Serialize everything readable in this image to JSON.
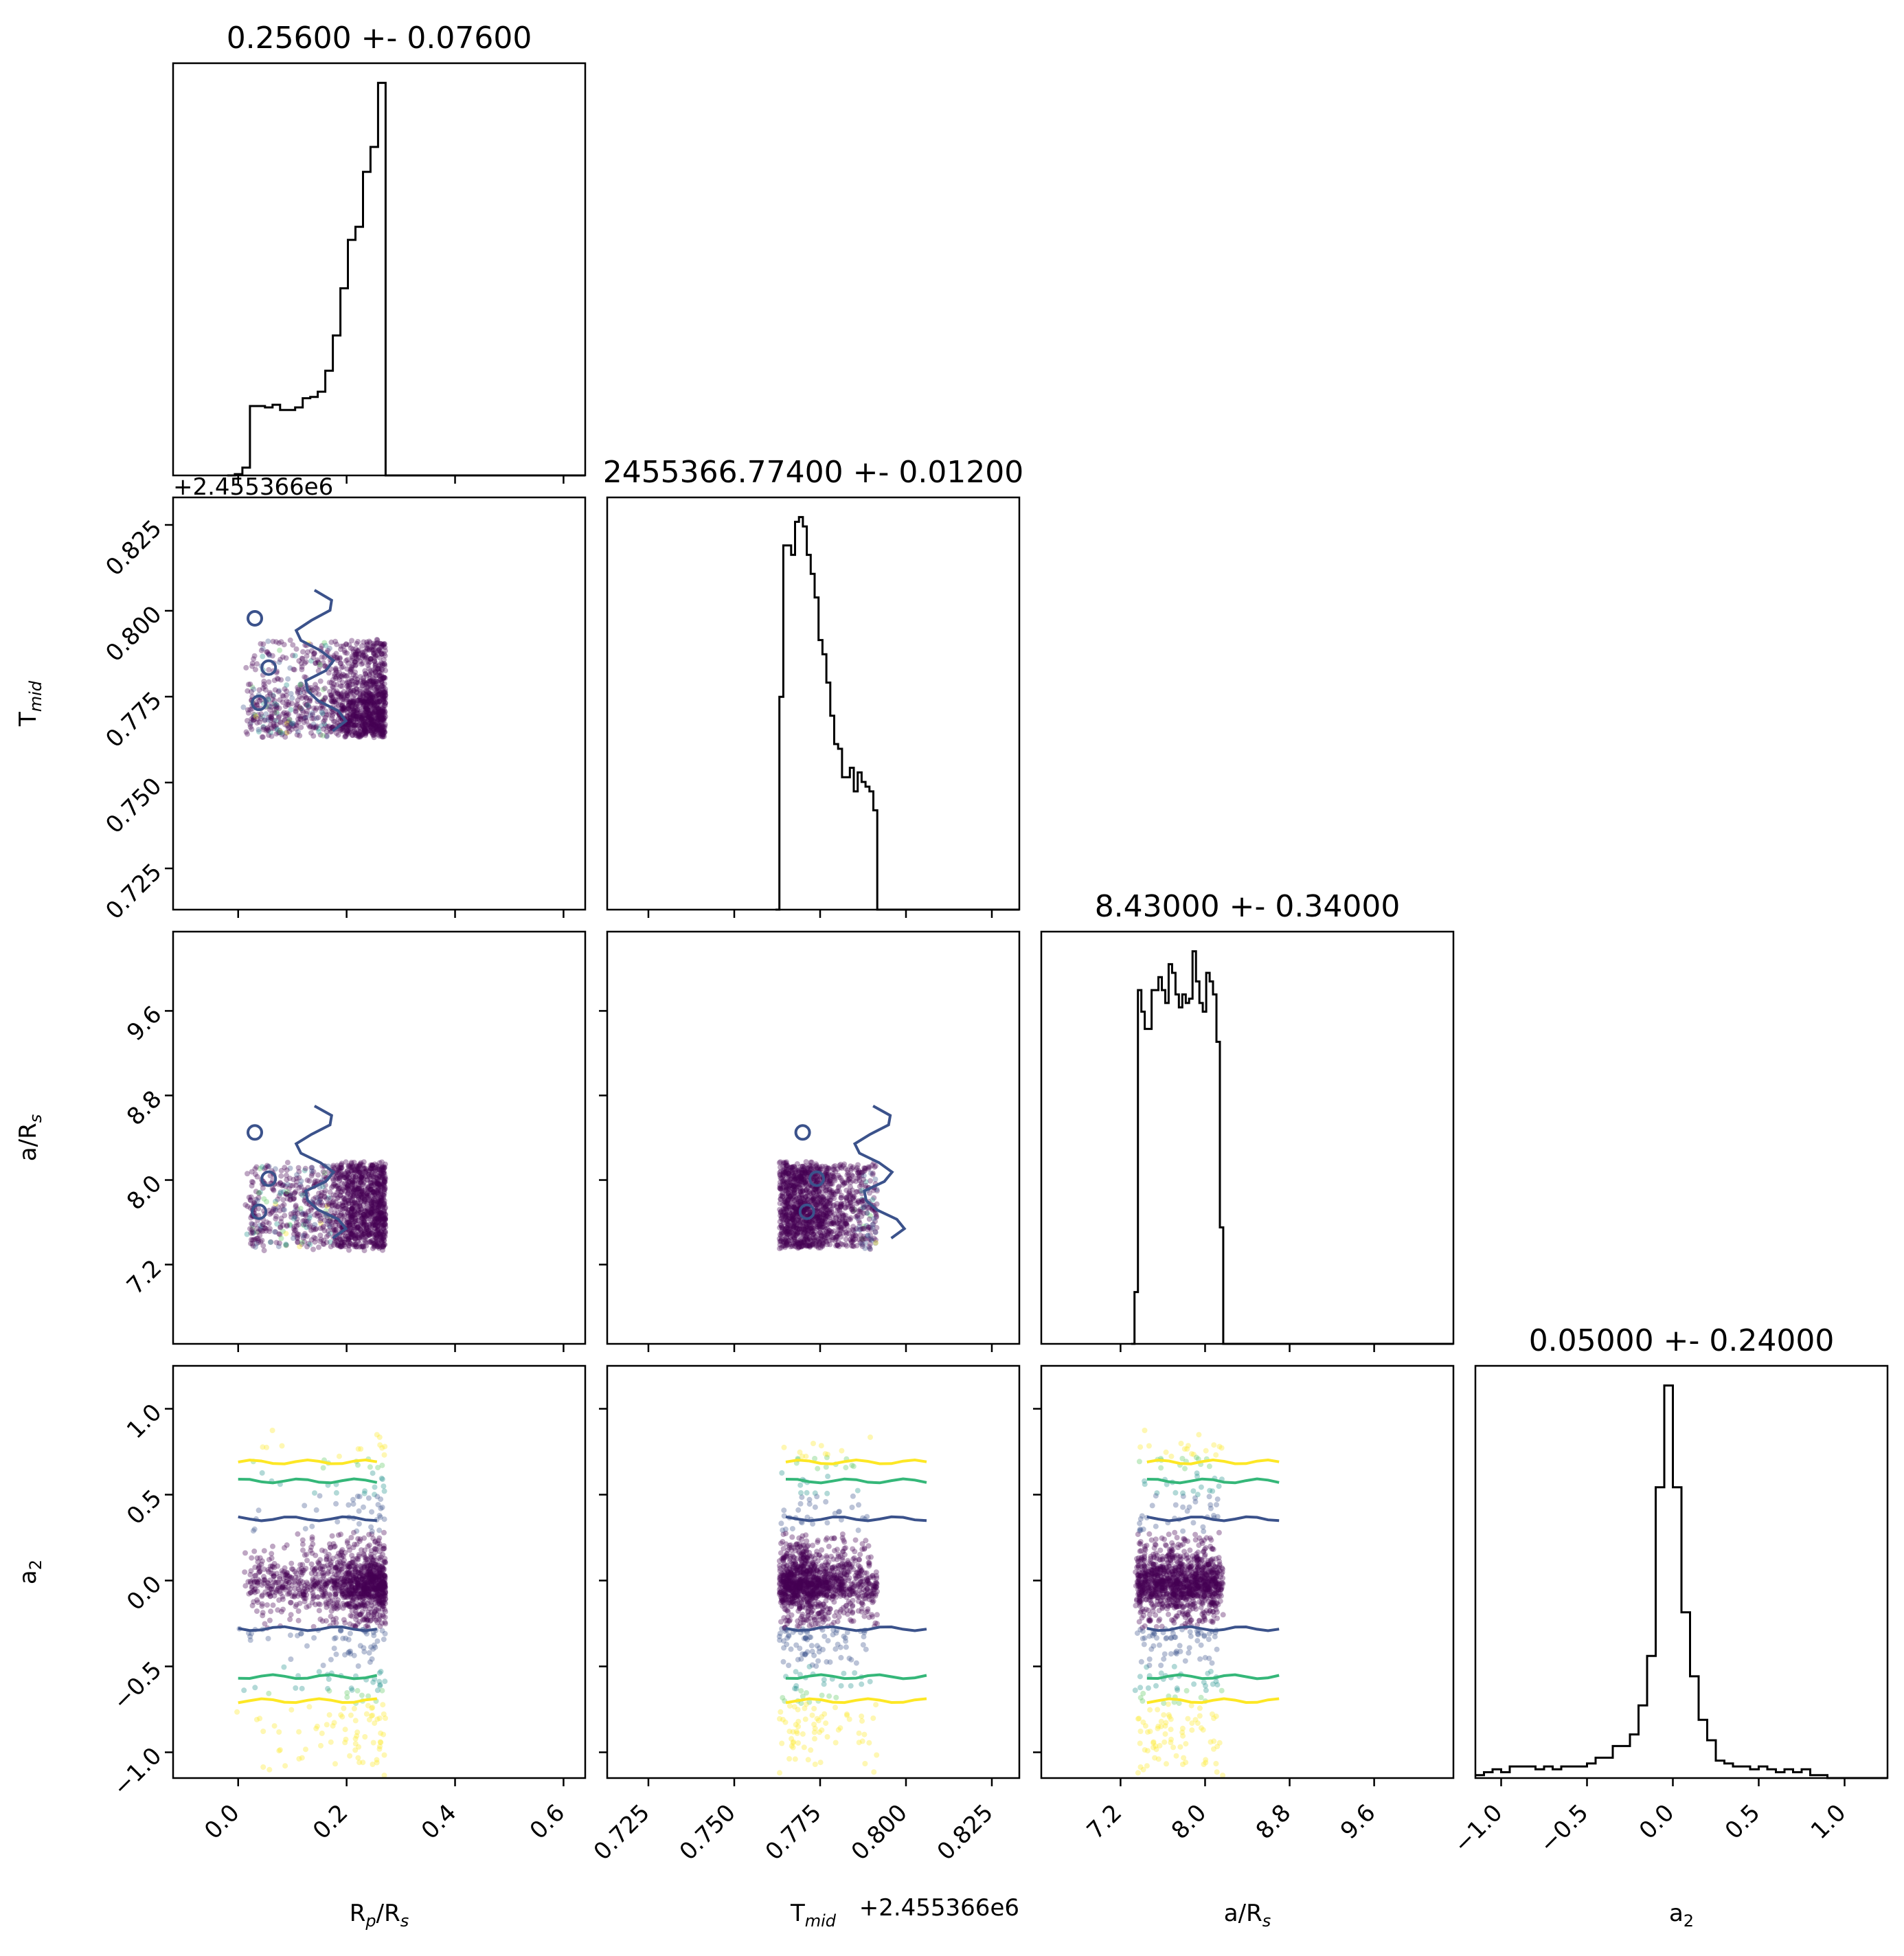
{
  "chart_data": {
    "type": "scatter",
    "chart_style": "corner plot (pairwise posterior samples with 1D marginal histograms and density contours)",
    "parameters": [
      {
        "key": "rp",
        "label_main": "R",
        "label_sub1": "p",
        "label_rest": "/R",
        "label_sub2": "s",
        "title": "0.25600 +- 0.07600",
        "range": [
          -0.12,
          0.64
        ],
        "ticks": [
          0.0,
          0.2,
          0.4,
          0.6
        ],
        "tick_labels": [
          "0.0",
          "0.2",
          "0.4",
          "0.6"
        ],
        "sample_range": [
          0.0,
          0.256
        ],
        "offset_text": ""
      },
      {
        "key": "tmid",
        "label_main": "T",
        "label_sub1": "mid",
        "label_rest": "",
        "label_sub2": "",
        "title": "2455366.77400 +- 0.01200",
        "range": [
          0.713,
          0.833
        ],
        "ticks": [
          0.725,
          0.75,
          0.775,
          0.8,
          0.825
        ],
        "tick_labels": [
          "0.725",
          "0.750",
          "0.775",
          "0.800",
          "0.825"
        ],
        "sample_range": [
          0.765,
          0.806
        ],
        "offset_text": "+2.455366e6"
      },
      {
        "key": "ars",
        "label_main": "a/R",
        "label_sub1": "",
        "label_rest": "",
        "label_sub2": "s",
        "title": "8.43000 +- 0.34000",
        "range": [
          6.45,
          10.35
        ],
        "ticks": [
          7.2,
          8.0,
          8.8,
          9.6
        ],
        "tick_labels": [
          "7.2",
          "8.0",
          "8.8",
          "9.6"
        ],
        "sample_range": [
          7.45,
          8.7
        ],
        "offset_text": ""
      },
      {
        "key": "a2",
        "label_main": "a",
        "label_sub1": "",
        "label_rest": "",
        "label_sub2": "2",
        "title": "0.05000 +- 0.24000",
        "range": [
          -1.15,
          1.25
        ],
        "ticks": [
          -1.0,
          -0.5,
          0.0,
          0.5,
          1.0
        ],
        "tick_labels": [
          "−1.0",
          "−0.5",
          "0.0",
          "0.5",
          "1.0"
        ],
        "sample_range": [
          -1.0,
          1.0
        ],
        "offset_text": ""
      }
    ],
    "histograms": {
      "rp": {
        "edges_start": -0.02,
        "bin_width": 0.0139,
        "counts": [
          0,
          1,
          6,
          53,
          53,
          52,
          54,
          50,
          50,
          52,
          59,
          60,
          64,
          80,
          107,
          143,
          180,
          190,
          232,
          251,
          300,
          0,
          0,
          0,
          0,
          0,
          0,
          0,
          0,
          0,
          0,
          0,
          0,
          0,
          0,
          0,
          0,
          0,
          0,
          0,
          0,
          0,
          0,
          0,
          0,
          0
        ]
      },
      "tmid": {
        "edges_start": 0.762,
        "bin_width": 0.00114,
        "counts": [
          0,
          45,
          77,
          77,
          75,
          82,
          83,
          81,
          75,
          71,
          66,
          57,
          54,
          48,
          41,
          35,
          34,
          28,
          28,
          30,
          25,
          29,
          27,
          26,
          25,
          21,
          0
        ]
      },
      "ars": {
        "edges_start": 7.3,
        "bin_width": 0.0323,
        "counts": [
          0,
          12,
          82,
          77,
          73,
          73,
          82,
          82,
          85,
          82,
          79,
          88,
          86,
          81,
          78,
          81,
          79,
          80,
          91,
          84,
          79,
          77,
          86,
          84,
          81,
          70,
          27,
          0
        ]
      },
      "a2": {
        "edges_start": -1.15,
        "bin_width": 0.05,
        "counts": [
          1,
          2,
          3,
          2,
          4,
          4,
          4,
          3,
          4,
          3,
          4,
          4,
          4,
          5,
          7,
          7,
          11,
          11,
          15,
          25,
          42,
          100,
          135,
          100,
          57,
          35,
          20,
          13,
          6,
          5,
          4,
          4,
          3,
          4,
          3,
          2,
          3,
          2,
          3,
          1,
          1,
          0,
          0,
          0,
          0,
          0,
          0,
          0
        ]
      }
    },
    "contour_color": "#3b528b",
    "quantile_colors": [
      "#fde725",
      "#35b779",
      "#3b528b"
    ],
    "point_colors": [
      "#440154",
      "#440154",
      "#440154",
      "#3b528b",
      "#21918c",
      "#5ec962",
      "#fde725"
    ],
    "a2_quantile_levels": [
      0.69,
      0.58,
      0.36,
      -0.28,
      -0.56,
      -0.7
    ],
    "grid": false,
    "legend": "none"
  }
}
